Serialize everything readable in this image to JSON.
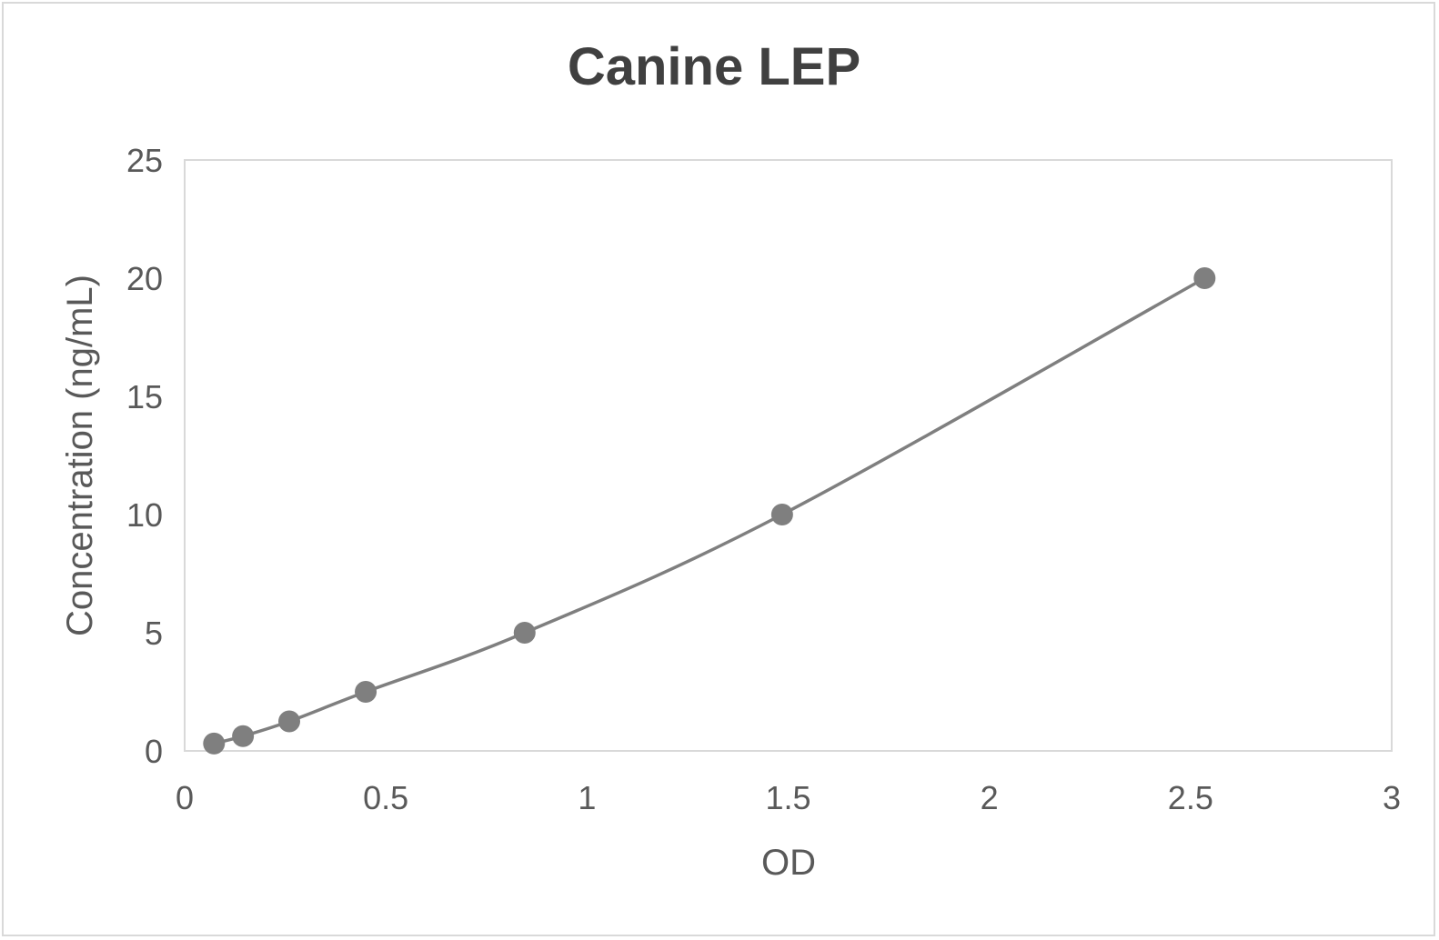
{
  "chart_data": {
    "type": "scatter",
    "title": "Canine LEP",
    "xlabel": "OD",
    "ylabel": "Concentration (ng/mL)",
    "xlim": [
      0,
      3
    ],
    "ylim": [
      0,
      25
    ],
    "x_ticks": [
      "0",
      "0.5",
      "1",
      "1.5",
      "2",
      "2.5",
      "3"
    ],
    "y_ticks": [
      "0",
      "5",
      "10",
      "15",
      "20",
      "25"
    ],
    "grid": false,
    "legend": "none",
    "smoothed_line": true,
    "series": [
      {
        "color": "#7f7f7f",
        "points": [
          {
            "x": 0.073,
            "y": 0.3125
          },
          {
            "x": 0.145,
            "y": 0.625
          },
          {
            "x": 0.26,
            "y": 1.25
          },
          {
            "x": 0.45,
            "y": 2.5
          },
          {
            "x": 0.845,
            "y": 5
          },
          {
            "x": 1.485,
            "y": 10
          },
          {
            "x": 2.535,
            "y": 20
          }
        ]
      }
    ]
  }
}
